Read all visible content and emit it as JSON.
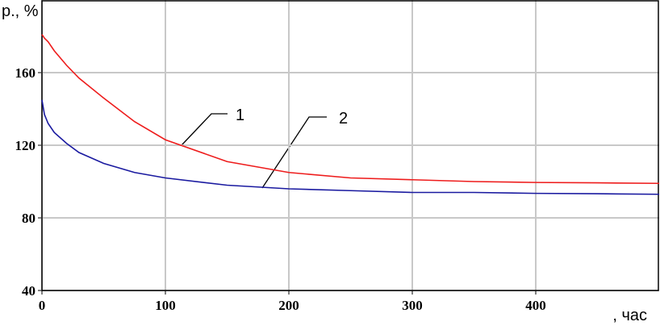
{
  "chart_data": {
    "type": "line",
    "y_label": "р., %",
    "x_label": ", час",
    "x": [
      0,
      2,
      5,
      10,
      20,
      30,
      50,
      75,
      100,
      150,
      200,
      250,
      300,
      350,
      400,
      450,
      500
    ],
    "series": [
      {
        "name": "1",
        "color": "#ee1c1c",
        "values": [
          181,
          179,
          177,
          172,
          164,
          157,
          146,
          133,
          123,
          111,
          105,
          102,
          101,
          100,
          99.5,
          99.3,
          99
        ]
      },
      {
        "name": "2",
        "color": "#1a1aa0",
        "values": [
          145,
          137,
          132,
          127,
          121,
          116,
          110,
          105,
          102,
          98,
          96,
          95,
          94,
          94,
          93.5,
          93.3,
          93
        ]
      }
    ],
    "xlim": [
      0,
      500
    ],
    "ylim": [
      40,
      200
    ],
    "xticks": [
      0,
      100,
      200,
      300,
      400
    ],
    "yticks": [
      40,
      80,
      120,
      160
    ],
    "grid": true
  }
}
